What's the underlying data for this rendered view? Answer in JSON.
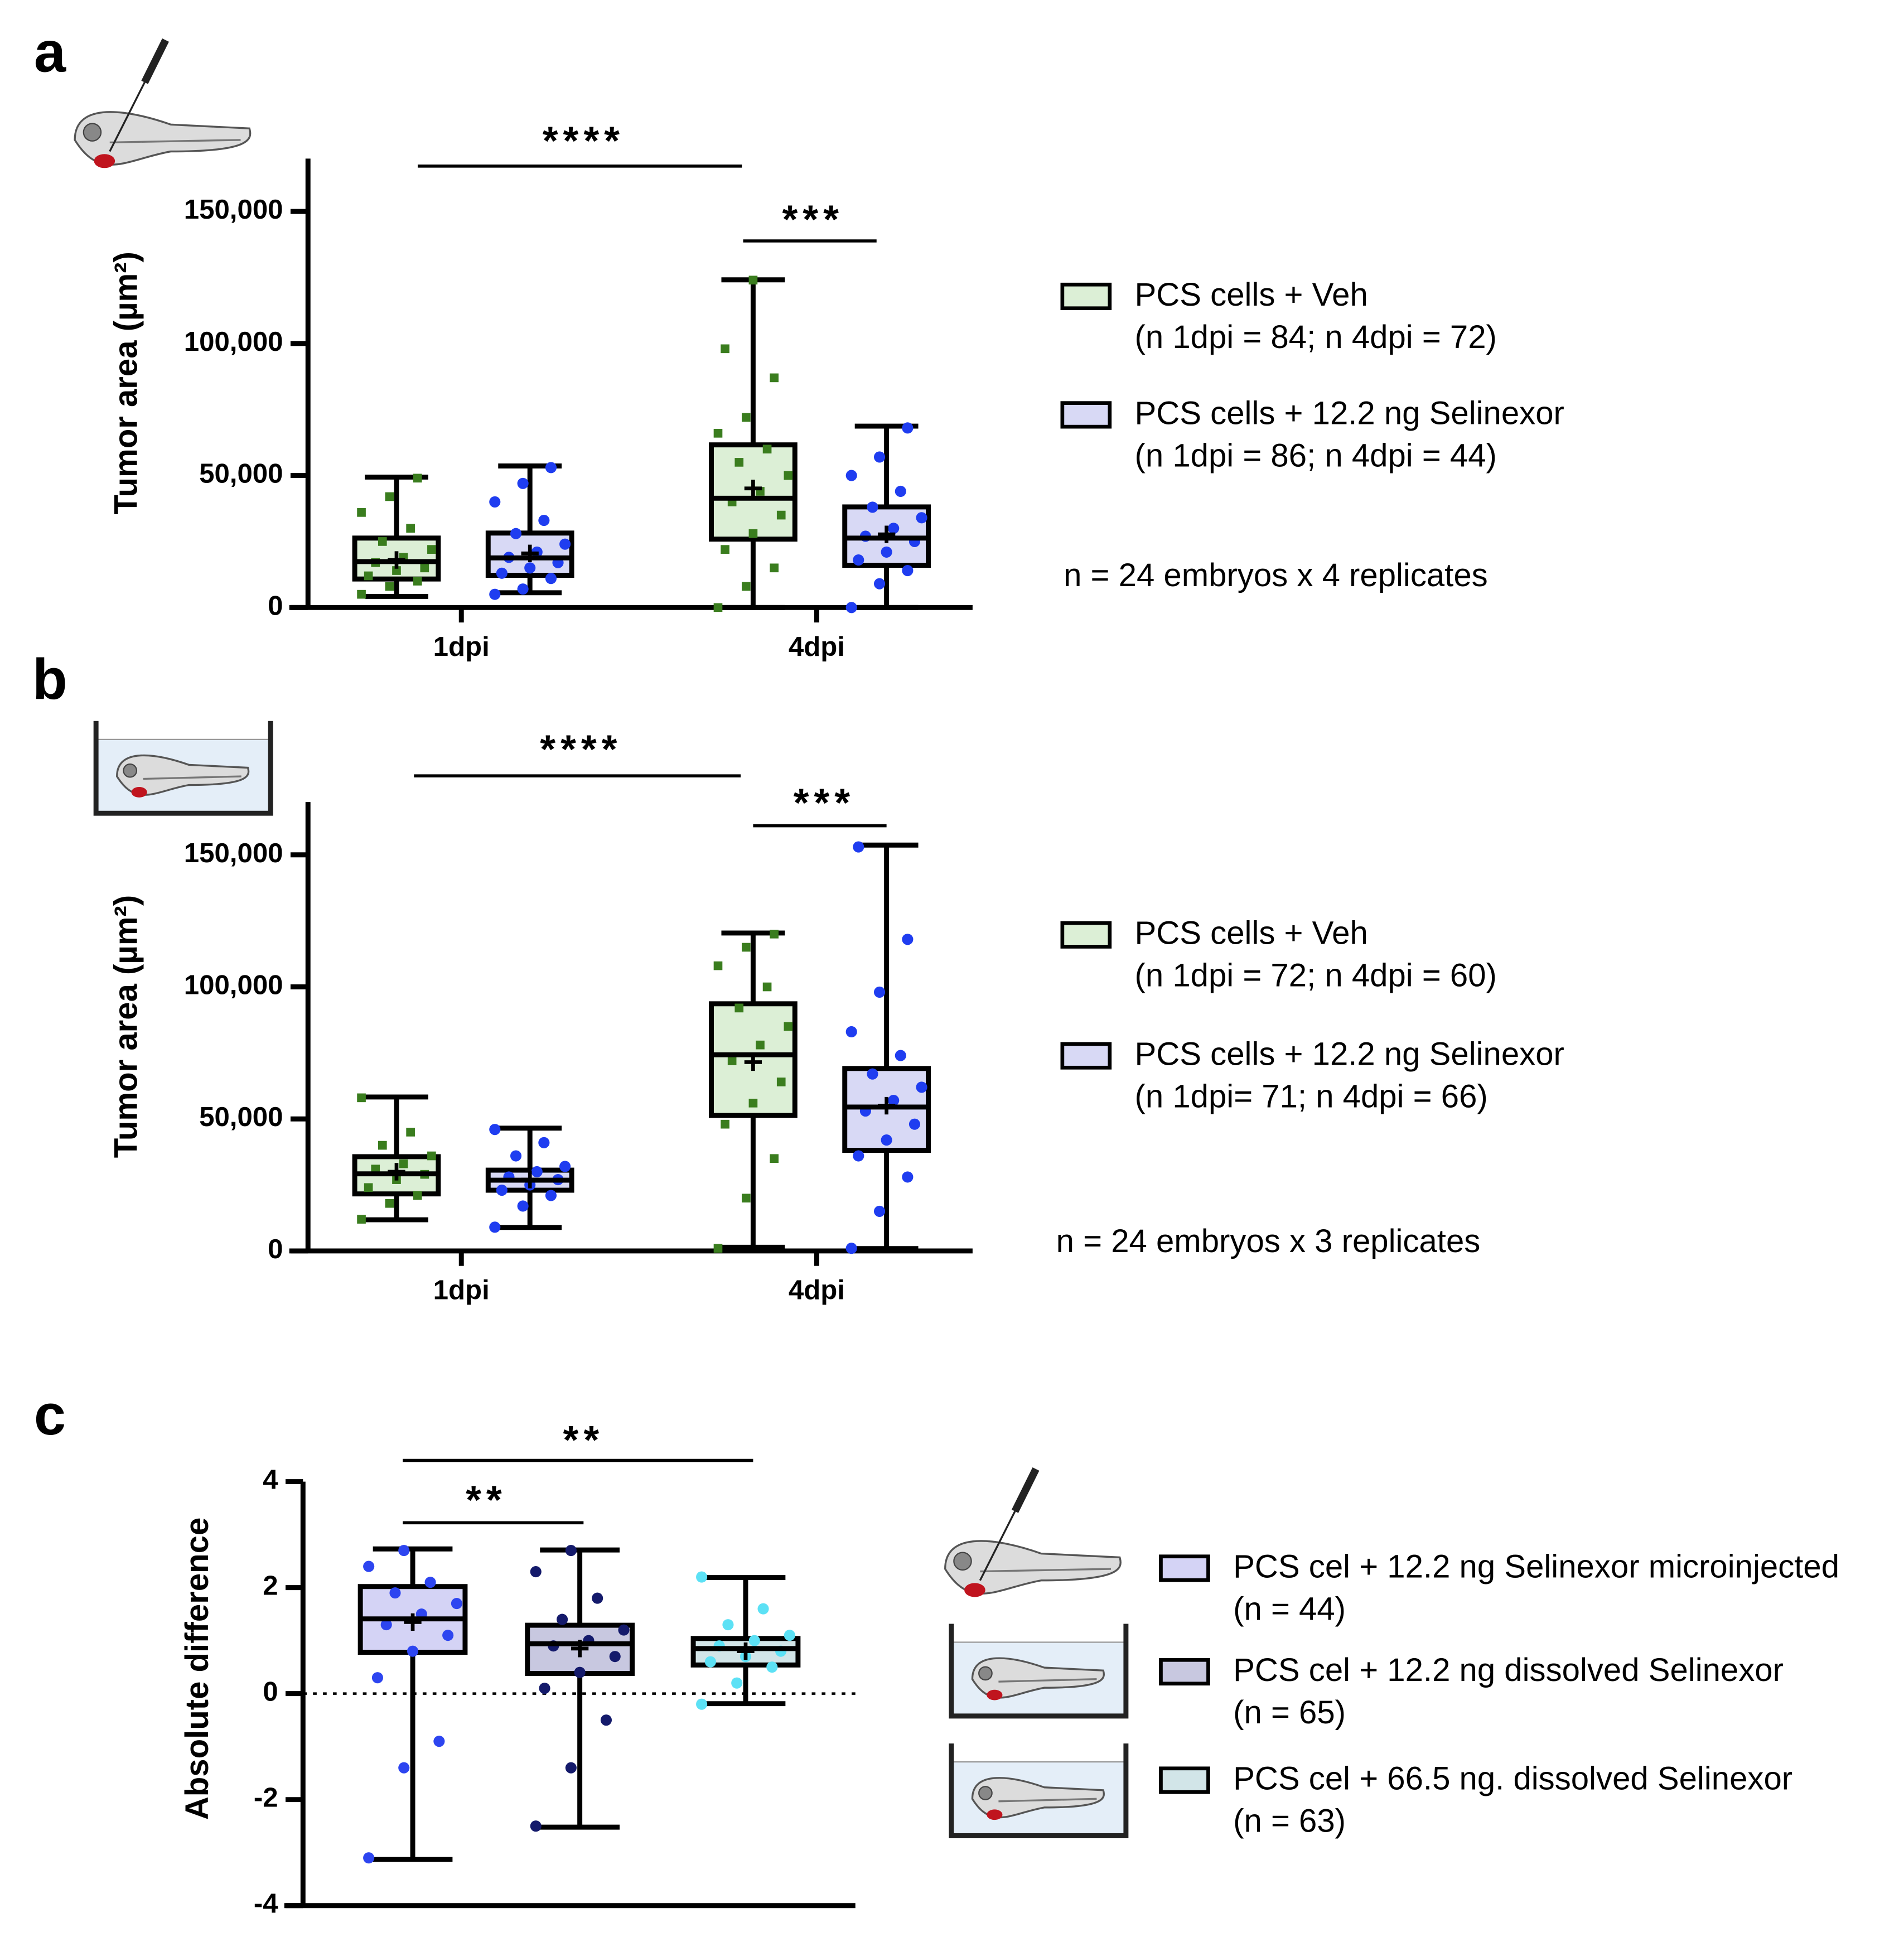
{
  "chart_data": [
    {
      "type": "box",
      "label": "a",
      "ylabel": "Tumor area (µm²)",
      "ylim": [
        0,
        170000
      ],
      "yticks": [
        0,
        {
          "value": 50000,
          "label": "50,000"
        },
        {
          "value": 100000,
          "label": "100,000"
        },
        {
          "value": 150000,
          "label": "150,000"
        }
      ],
      "categories": [
        "1dpi",
        "4dpi"
      ],
      "series": [
        {
          "name": "PCS cells + Veh",
          "note": "(n 1dpi = 84; n 4dpi = 72)",
          "color": "#3a7d1e",
          "fill": "#dcefd6",
          "marker": "square",
          "min": [
            4200,
            0
          ],
          "q1": [
            10800,
            25900
          ],
          "median": [
            17400,
            41400
          ],
          "q3": [
            26300,
            61600
          ],
          "max": [
            49400,
            124100
          ],
          "mean": [
            18000,
            45100
          ],
          "points": [
            [
              5000,
              8000,
              10000,
              12000,
              14000,
              15000,
              17000,
              19000,
              22000,
              25000,
              30000,
              36000,
              42000,
              49000
            ],
            [
              0,
              8000,
              15000,
              22000,
              28000,
              35000,
              40000,
              44000,
              50000,
              55000,
              60000,
              66000,
              72000,
              87000,
              98000,
              124000
            ]
          ]
        },
        {
          "name": "PCS cells + 12.2 ng Selinexor",
          "note": "(n 1dpi = 86; n 4dpi = 44)",
          "color": "#1f3df0",
          "fill": "#d8d9f5",
          "marker": "circle",
          "min": [
            5600,
            0
          ],
          "q1": [
            12200,
            16000
          ],
          "median": [
            18800,
            26300
          ],
          "q3": [
            28200,
            38100
          ],
          "max": [
            53600,
            68700
          ],
          "mean": [
            20500,
            27700
          ],
          "points": [
            [
              5000,
              7000,
              11000,
              13000,
              15000,
              17000,
              19000,
              21000,
              24000,
              28000,
              33000,
              40000,
              47000,
              53000
            ],
            [
              0,
              9000,
              14000,
              18000,
              21000,
              25000,
              27000,
              30000,
              34000,
              38000,
              44000,
              50000,
              57000,
              68000
            ]
          ]
        }
      ],
      "annotations": [
        "****",
        "***"
      ],
      "footnote": "n = 24 embryos x 4 replicates"
    },
    {
      "type": "box",
      "label": "b",
      "ylabel": "Tumor area (µm²)",
      "ylim": [
        0,
        170000
      ],
      "yticks": [
        0,
        {
          "value": 50000,
          "label": "50,000"
        },
        {
          "value": 100000,
          "label": "100,000"
        },
        {
          "value": 150000,
          "label": "150,000"
        }
      ],
      "categories": [
        "1dpi",
        "4dpi"
      ],
      "series": [
        {
          "name": "PCS cells + Veh",
          "note": "(n 1dpi = 72; n 4dpi = 60)",
          "color": "#3a7d1e",
          "fill": "#dcefd6",
          "marker": "square",
          "min": [
            11800,
            1400
          ],
          "q1": [
            21600,
            51300
          ],
          "median": [
            29200,
            74300
          ],
          "q3": [
            35700,
            93600
          ],
          "max": [
            58300,
            120400
          ],
          "mean": [
            30000,
            71500
          ],
          "points": [
            [
              12000,
              18000,
              21000,
              24000,
              27000,
              29000,
              31000,
              33000,
              36000,
              40000,
              45000,
              58000
            ],
            [
              1000,
              20000,
              35000,
              48000,
              56000,
              64000,
              72000,
              78000,
              85000,
              92000,
              100000,
              108000,
              115000,
              120000
            ]
          ]
        },
        {
          "name": "PCS cells + 12.2 ng Selinexor",
          "note": "(n 1dpi= 71; n 4dpi = 66)",
          "color": "#1f3df0",
          "fill": "#d8d9f5",
          "marker": "circle",
          "min": [
            8900,
            900
          ],
          "q1": [
            23000,
            38100
          ],
          "median": [
            26800,
            54500
          ],
          "q3": [
            30600,
            69100
          ],
          "max": [
            46500,
            153700
          ],
          "mean": [
            27000,
            55000
          ],
          "points": [
            [
              9000,
              17000,
              21000,
              23000,
              25000,
              27000,
              28000,
              30000,
              32000,
              36000,
              41000,
              46000
            ],
            [
              1000,
              15000,
              28000,
              36000,
              42000,
              48000,
              53000,
              57000,
              62000,
              67000,
              74000,
              83000,
              98000,
              118000,
              153000
            ]
          ]
        }
      ],
      "annotations": [
        "****",
        "***"
      ],
      "footnote": "n = 24 embryos x 3 replicates"
    },
    {
      "type": "box",
      "label": "c",
      "ylabel": "Absolute difference",
      "ylim": [
        -4,
        4
      ],
      "yticks": [
        4,
        2,
        0,
        -2,
        -4
      ],
      "zero_line": true,
      "categories": [
        null
      ],
      "series": [
        {
          "name": "PCS cel + 12.2 ng Selinexor microinjected",
          "note": "(n = 44)",
          "color": "#2d45f0",
          "fill": "#d4d3f5",
          "marker": "circle",
          "min": [
            -3.13
          ],
          "q1": [
            0.78
          ],
          "median": [
            1.41
          ],
          "q3": [
            2.02
          ],
          "max": [
            2.73
          ],
          "mean": [
            1.35
          ],
          "points": [
            [
              -3.1,
              -1.4,
              -0.9,
              0.3,
              0.8,
              1.1,
              1.3,
              1.5,
              1.7,
              1.9,
              2.1,
              2.4,
              2.7
            ]
          ]
        },
        {
          "name": "PCS cel + 12.2 ng dissolved Selinexor",
          "note": "(n = 65)",
          "color": "#141a6b",
          "fill": "#c8c8e0",
          "marker": "circle",
          "min": [
            -2.52
          ],
          "q1": [
            0.38
          ],
          "median": [
            0.94
          ],
          "q3": [
            1.29
          ],
          "max": [
            2.71
          ],
          "mean": [
            0.85
          ],
          "points": [
            [
              -2.5,
              -1.4,
              -0.5,
              0.1,
              0.4,
              0.7,
              0.9,
              1.0,
              1.2,
              1.4,
              1.8,
              2.3,
              2.7
            ]
          ]
        },
        {
          "name": "PCS cel + 66.5 ng. dissolved Selinexor",
          "note": "(n = 63)",
          "color": "#5ce1f5",
          "fill": "#d2e5e8",
          "marker": "circle",
          "min": [
            -0.19
          ],
          "q1": [
            0.54
          ],
          "median": [
            0.85
          ],
          "q3": [
            1.04
          ],
          "max": [
            2.19
          ],
          "mean": [
            0.8
          ],
          "points": [
            [
              -0.2,
              0.2,
              0.5,
              0.6,
              0.7,
              0.8,
              0.9,
              1.0,
              1.1,
              1.3,
              1.6,
              2.2
            ]
          ]
        }
      ],
      "annotations": [
        "**",
        "**"
      ]
    }
  ]
}
